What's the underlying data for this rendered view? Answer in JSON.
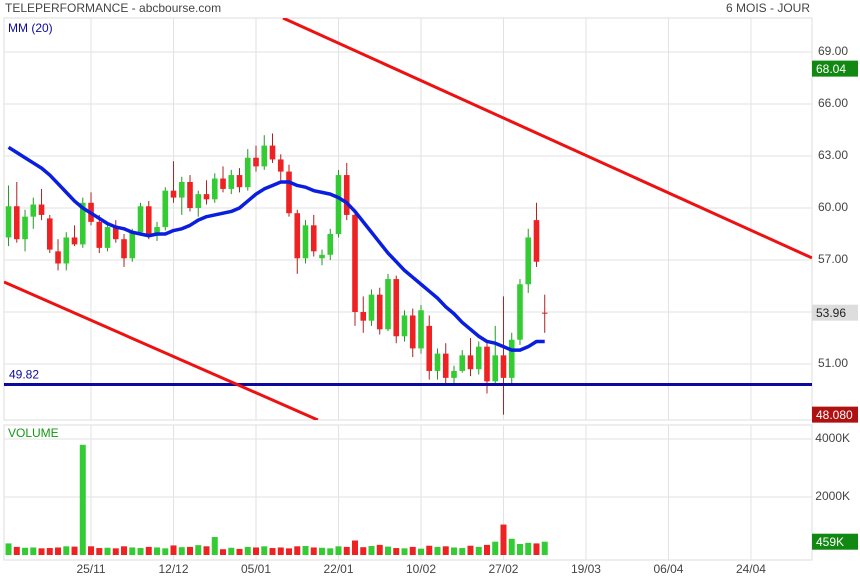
{
  "chart_data": {
    "type": "candlestick",
    "title": "TELEPERFORMANCE - abcbourse.com",
    "subtitle": "6 MOIS - JOUR",
    "up_color": "#33cc33",
    "down_color": "#ee2222",
    "open": [
      58.3,
      60.1,
      58.2,
      59.5,
      60.2,
      59.4,
      57.5,
      56.8,
      58.3,
      57.9,
      60.3,
      59.2,
      57.7,
      58.9,
      58.2,
      57.1,
      58.6,
      60.1,
      58.4,
      58.9,
      61,
      60.6,
      61.5,
      60,
      60.8,
      60.5,
      61.7,
      61.1,
      61.9,
      61.2,
      62.9,
      62.4,
      63.6,
      62.8,
      62.1,
      59.7,
      57.1,
      59,
      57.1,
      57.3,
      58.5,
      61.9,
      59.6,
      54,
      53.5,
      55,
      53,
      55.9,
      52.6,
      53.8,
      51.9,
      53.2,
      50.6,
      51.6,
      50.2,
      50.6,
      51.5,
      50.7,
      52,
      50,
      51.5,
      50.2,
      52.4,
      55.6,
      59.3,
      53.96
    ],
    "high": [
      61.3,
      61.5,
      59.9,
      60.6,
      61.1,
      59.6,
      58.2,
      58.6,
      59,
      60.6,
      60.9,
      59.6,
      59.2,
      59.3,
      58.5,
      58.8,
      60.3,
      60.4,
      59.2,
      61.2,
      62.7,
      61.8,
      61.9,
      61,
      61.6,
      62,
      62.4,
      62.2,
      62.3,
      63.4,
      63.6,
      64.2,
      64.3,
      63.1,
      62.5,
      59.9,
      59.3,
      59.6,
      57.6,
      58.8,
      62.2,
      62.6,
      59.8,
      54.9,
      55.3,
      55.4,
      56.2,
      56.1,
      54.1,
      54.2,
      54.4,
      53.8,
      51.9,
      52.2,
      50.9,
      51.8,
      52.5,
      52.3,
      52.3,
      53.2,
      54.9,
      52.8,
      55.9,
      58.8,
      60.3,
      55
    ],
    "low": [
      57.8,
      58,
      57.5,
      58.8,
      59.3,
      57.4,
      56.4,
      56.4,
      57.8,
      57.7,
      59,
      57.4,
      57.5,
      58,
      56.6,
      56.9,
      58.4,
      58.2,
      58.1,
      58.7,
      60.3,
      59.6,
      59.8,
      59.5,
      60.2,
      60.3,
      60.9,
      60.8,
      60.9,
      61,
      62.1,
      62.2,
      62.6,
      61.6,
      59.5,
      56.2,
      56.8,
      57.2,
      56.7,
      57,
      58.3,
      59.3,
      53.2,
      52.8,
      53.2,
      52.7,
      52.9,
      52.2,
      52.3,
      51.4,
      51.6,
      50.1,
      50.1,
      49.9,
      49.8,
      50.5,
      50.3,
      50.4,
      49.3,
      49.9,
      48.08,
      49.8,
      52.1,
      55.1,
      56.6,
      52.8
    ],
    "close": [
      60.1,
      58.2,
      59.5,
      60.2,
      59.6,
      57.6,
      56.8,
      58.3,
      57.9,
      60.3,
      59.2,
      57.7,
      58.9,
      58.2,
      57.1,
      58.6,
      60.1,
      58.4,
      58.9,
      61,
      60.6,
      61.5,
      60,
      60.8,
      60.5,
      61.7,
      61.1,
      61.9,
      61.2,
      62.9,
      62.4,
      63.6,
      62.8,
      62.1,
      59.7,
      57.1,
      59,
      57.5,
      57.3,
      58.5,
      61.9,
      59.6,
      54,
      53.5,
      55,
      53,
      55.9,
      52.6,
      53.8,
      51.9,
      54.1,
      50.6,
      51.6,
      50.2,
      50.6,
      51.5,
      50.7,
      52,
      50,
      51.5,
      50.2,
      52.4,
      55.6,
      58.3,
      56.9,
      53.96
    ],
    "ma": {
      "name": "MM (20)",
      "color": "#0a1ee0",
      "values": [
        63.5,
        63.2,
        62.9,
        62.6,
        62.3,
        61.9,
        61.4,
        60.9,
        60.4,
        60.0,
        59.7,
        59.4,
        59.1,
        58.9,
        58.8,
        58.6,
        58.5,
        58.4,
        58.5,
        58.5,
        58.7,
        58.8,
        59.0,
        59.3,
        59.5,
        59.6,
        59.7,
        59.8,
        60.0,
        60.4,
        60.8,
        61.1,
        61.3,
        61.5,
        61.5,
        61.3,
        61.2,
        61.0,
        60.9,
        60.8,
        60.6,
        60.3,
        59.8,
        59.2,
        58.6,
        58.0,
        57.4,
        56.9,
        56.4,
        56.0,
        55.6,
        55.2,
        54.8,
        54.3,
        53.9,
        53.4,
        53.0,
        52.6,
        52.3,
        52.2,
        52.0,
        51.8,
        51.8,
        52.0,
        52.3,
        52.3
      ]
    },
    "support": {
      "value": 49.82,
      "color": "#0a0aa0"
    },
    "trendlines": [
      {
        "color": "#ee1111",
        "x": [
          33.27,
          97.39
        ],
        "y": [
          70.96,
          57.12
        ]
      },
      {
        "color": "#ee1111",
        "x": [
          -0.55,
          37.5
        ],
        "y": [
          55.73,
          47.77
        ]
      }
    ],
    "price_labels": [
      {
        "value": 68.04,
        "color": "#118811",
        "text_color": "#ffffff"
      },
      {
        "value": 53.96,
        "color": "#dddddd",
        "text_color": "#222222"
      },
      {
        "value": 48.08,
        "label": "48.080",
        "color": "#b01010",
        "text_color": "#ffffff"
      }
    ],
    "xlim": [
      -0.55,
      97.4
    ],
    "xticks": [
      {
        "value": 10,
        "label": "25/11"
      },
      {
        "value": 20,
        "label": "12/12"
      },
      {
        "value": 30,
        "label": "05/01"
      },
      {
        "value": 40,
        "label": "22/01"
      },
      {
        "value": 50,
        "label": "10/02"
      },
      {
        "value": 60,
        "label": "27/02"
      },
      {
        "value": 70,
        "label": "19/03"
      },
      {
        "value": 80,
        "label": "06/04"
      },
      {
        "value": 90,
        "label": "24/04"
      }
    ],
    "ylim": [
      47.77,
      70.96
    ],
    "yticks": [
      {
        "value": 51,
        "label": "51.00"
      },
      {
        "value": 54,
        "label": "54.00"
      },
      {
        "value": 57,
        "label": "57.00"
      },
      {
        "value": 60,
        "label": "60.00"
      },
      {
        "value": 63,
        "label": "63.00"
      },
      {
        "value": 66,
        "label": "66.00"
      },
      {
        "value": 69,
        "label": "69.00"
      }
    ],
    "volume": {
      "title": "VOLUME",
      "values": [
        400,
        280,
        250,
        260,
        230,
        240,
        260,
        300,
        290,
        3800,
        300,
        240,
        250,
        230,
        300,
        260,
        240,
        280,
        260,
        230,
        330,
        270,
        280,
        340,
        300,
        620,
        200,
        250,
        210,
        280,
        260,
        300,
        240,
        260,
        230,
        300,
        310,
        260,
        250,
        230,
        300,
        280,
        500,
        270,
        310,
        350,
        290,
        240,
        230,
        280,
        220,
        320,
        280,
        300,
        260,
        240,
        320,
        280,
        350,
        460,
        1050,
        560,
        380,
        420,
        400,
        459
      ],
      "ylim": [
        -172,
        4483
      ],
      "yticks": [
        {
          "value": 2000,
          "label": "2000K"
        },
        {
          "value": 4000,
          "label": "4000K"
        }
      ],
      "last_label": {
        "value": 459,
        "label": "459K",
        "color": "#118811"
      }
    }
  }
}
